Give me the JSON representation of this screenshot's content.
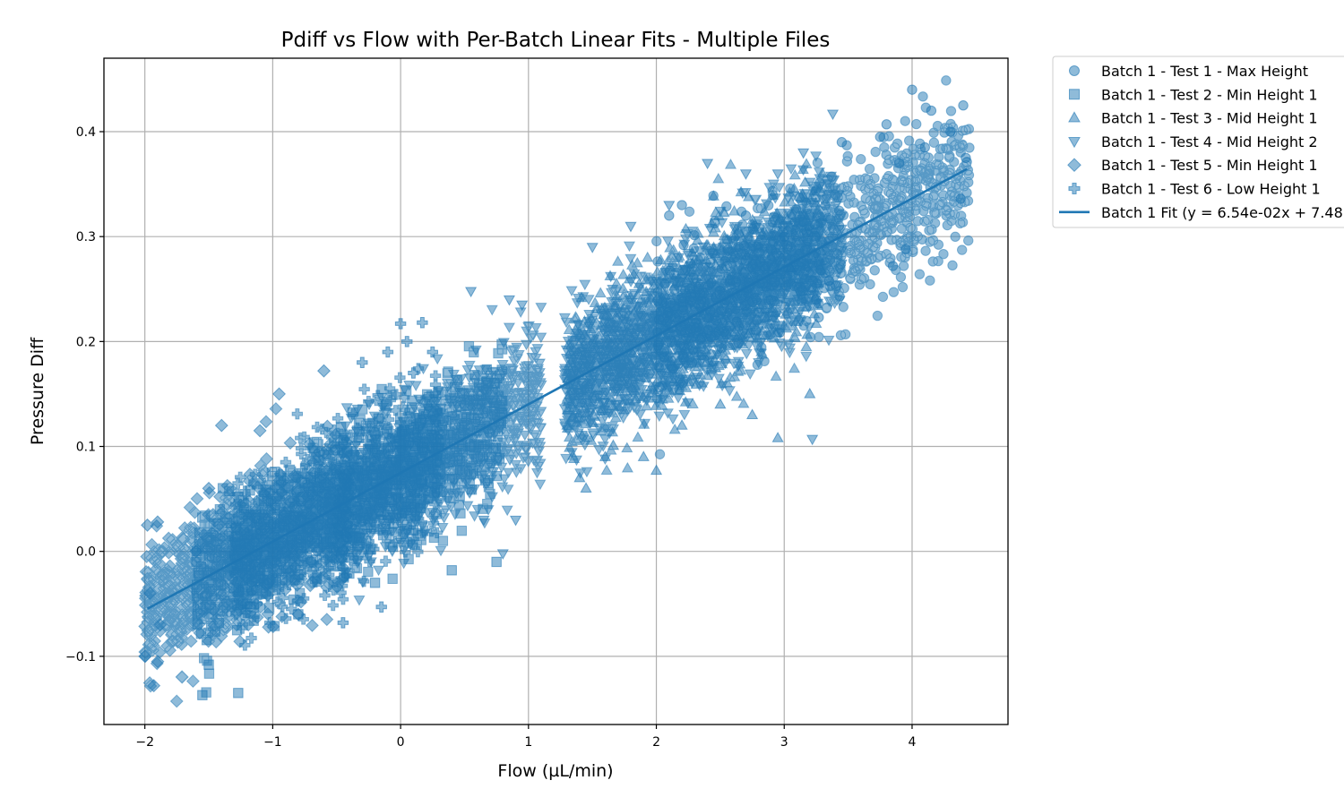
{
  "chart_data": {
    "type": "scatter",
    "title": "Pdiff vs Flow with Per-Batch Linear Fits - Multiple Files",
    "xlabel": "Flow (µL/min)",
    "ylabel": "Pressure Diff",
    "xlim": [
      -2.32,
      4.75
    ],
    "ylim": [
      -0.165,
      0.47
    ],
    "xticks": [
      -2,
      -1,
      0,
      1,
      2,
      3,
      4
    ],
    "xtick_labels": [
      "−2",
      "−1",
      "0",
      "1",
      "2",
      "3",
      "4"
    ],
    "yticks": [
      -0.1,
      0.0,
      0.1,
      0.2,
      0.3,
      0.4
    ],
    "ytick_labels": [
      "−0.1",
      "0.0",
      "0.1",
      "0.2",
      "0.3",
      "0.4"
    ],
    "grid": true,
    "legend_position": "outside-right-top",
    "color": "#1f77b4",
    "series": [
      {
        "name": "Batch 1 - Test 1 - Max Height",
        "marker": "circle",
        "x_range": [
          2.0,
          4.45
        ],
        "points": [
          [
            4.0,
            0.44
          ],
          [
            4.4,
            0.425
          ],
          [
            4.15,
            0.42
          ],
          [
            3.8,
            0.407
          ],
          [
            3.45,
            0.39
          ],
          [
            3.75,
            0.395
          ],
          [
            4.3,
            0.4
          ],
          [
            3.9,
            0.37
          ],
          [
            4.1,
            0.385
          ],
          [
            3.85,
            0.272
          ],
          [
            3.95,
            0.288
          ],
          [
            3.35,
            0.258
          ],
          [
            3.25,
            0.24
          ],
          [
            3.27,
            0.223
          ],
          [
            3.0,
            0.3
          ],
          [
            2.7,
            0.32
          ],
          [
            2.2,
            0.33
          ],
          [
            2.1,
            0.32
          ],
          [
            4.42,
            0.375
          ],
          [
            4.38,
            0.336
          ]
        ]
      },
      {
        "name": "Batch 1 - Test 2 - Min Height 1",
        "marker": "square",
        "x_range": [
          -1.6,
          0.8
        ],
        "points": [
          [
            -1.55,
            -0.137
          ],
          [
            -1.27,
            -0.135
          ],
          [
            -1.5,
            -0.108
          ],
          [
            -0.8,
            -0.06
          ],
          [
            0.75,
            -0.01
          ],
          [
            0.4,
            -0.018
          ],
          [
            -0.2,
            -0.03
          ],
          [
            -1.2,
            -0.05
          ],
          [
            0.1,
            0.02
          ]
        ]
      },
      {
        "name": "Batch 1 - Test 3 - Mid Height 1",
        "marker": "triangle-up",
        "x_range": [
          1.3,
          3.3
        ],
        "points": [
          [
            2.95,
            0.108
          ],
          [
            2.0,
            0.077
          ],
          [
            1.45,
            0.06
          ],
          [
            2.2,
            0.12
          ],
          [
            3.05,
            0.27
          ],
          [
            2.5,
            0.14
          ],
          [
            1.6,
            0.09
          ],
          [
            1.4,
            0.07
          ],
          [
            2.75,
            0.13
          ],
          [
            1.9,
            0.09
          ],
          [
            3.2,
            0.15
          ]
        ]
      },
      {
        "name": "Batch 1 - Test 4 - Mid Height 2",
        "marker": "triangle-down",
        "x_range": [
          -0.5,
          3.45
        ],
        "points": [
          [
            3.22,
            0.107
          ],
          [
            3.38,
            0.417
          ],
          [
            2.95,
            0.36
          ],
          [
            0.85,
            0.24
          ],
          [
            0.55,
            0.248
          ],
          [
            0.95,
            0.235
          ],
          [
            2.4,
            0.37
          ],
          [
            2.7,
            0.36
          ],
          [
            3.15,
            0.38
          ],
          [
            0.8,
            -0.002
          ],
          [
            1.5,
            0.29
          ],
          [
            1.8,
            0.31
          ],
          [
            0.9,
            0.03
          ],
          [
            0.65,
            0.03
          ],
          [
            2.1,
            0.33
          ]
        ]
      },
      {
        "name": "Batch 1 - Test 5 - Min Height 1",
        "marker": "diamond",
        "x_range": [
          -2.0,
          -0.4
        ],
        "points": [
          [
            -1.93,
            -0.128
          ],
          [
            -1.9,
            -0.105
          ],
          [
            -2.0,
            -0.1
          ],
          [
            -1.98,
            0.025
          ],
          [
            -1.9,
            0.028
          ],
          [
            -1.4,
            0.12
          ],
          [
            -1.5,
            0.06
          ],
          [
            -1.1,
            0.115
          ],
          [
            -0.95,
            0.15
          ],
          [
            -0.6,
            0.172
          ],
          [
            -1.6,
            0.0
          ],
          [
            -0.8,
            -0.06
          ],
          [
            -1.88,
            -0.07
          ],
          [
            -1.96,
            -0.04
          ]
        ]
      },
      {
        "name": "Batch 1 - Test 6 - Low Height 1",
        "marker": "plus",
        "x_range": [
          -1.3,
          0.3
        ],
        "points": [
          [
            0.0,
            0.217
          ],
          [
            0.17,
            0.218
          ],
          [
            -0.45,
            -0.068
          ],
          [
            -0.15,
            -0.053
          ],
          [
            0.05,
            0.2
          ],
          [
            0.25,
            0.19
          ],
          [
            -0.3,
            0.18
          ],
          [
            -0.1,
            0.19
          ],
          [
            0.1,
            0.17
          ]
        ]
      }
    ],
    "fits": [
      {
        "name": "Batch 1 Fit (y = 6.54e-02x + 7.48",
        "slope": 0.0654,
        "intercept": 0.0748,
        "x_range": [
          -1.98,
          4.43
        ]
      }
    ]
  }
}
